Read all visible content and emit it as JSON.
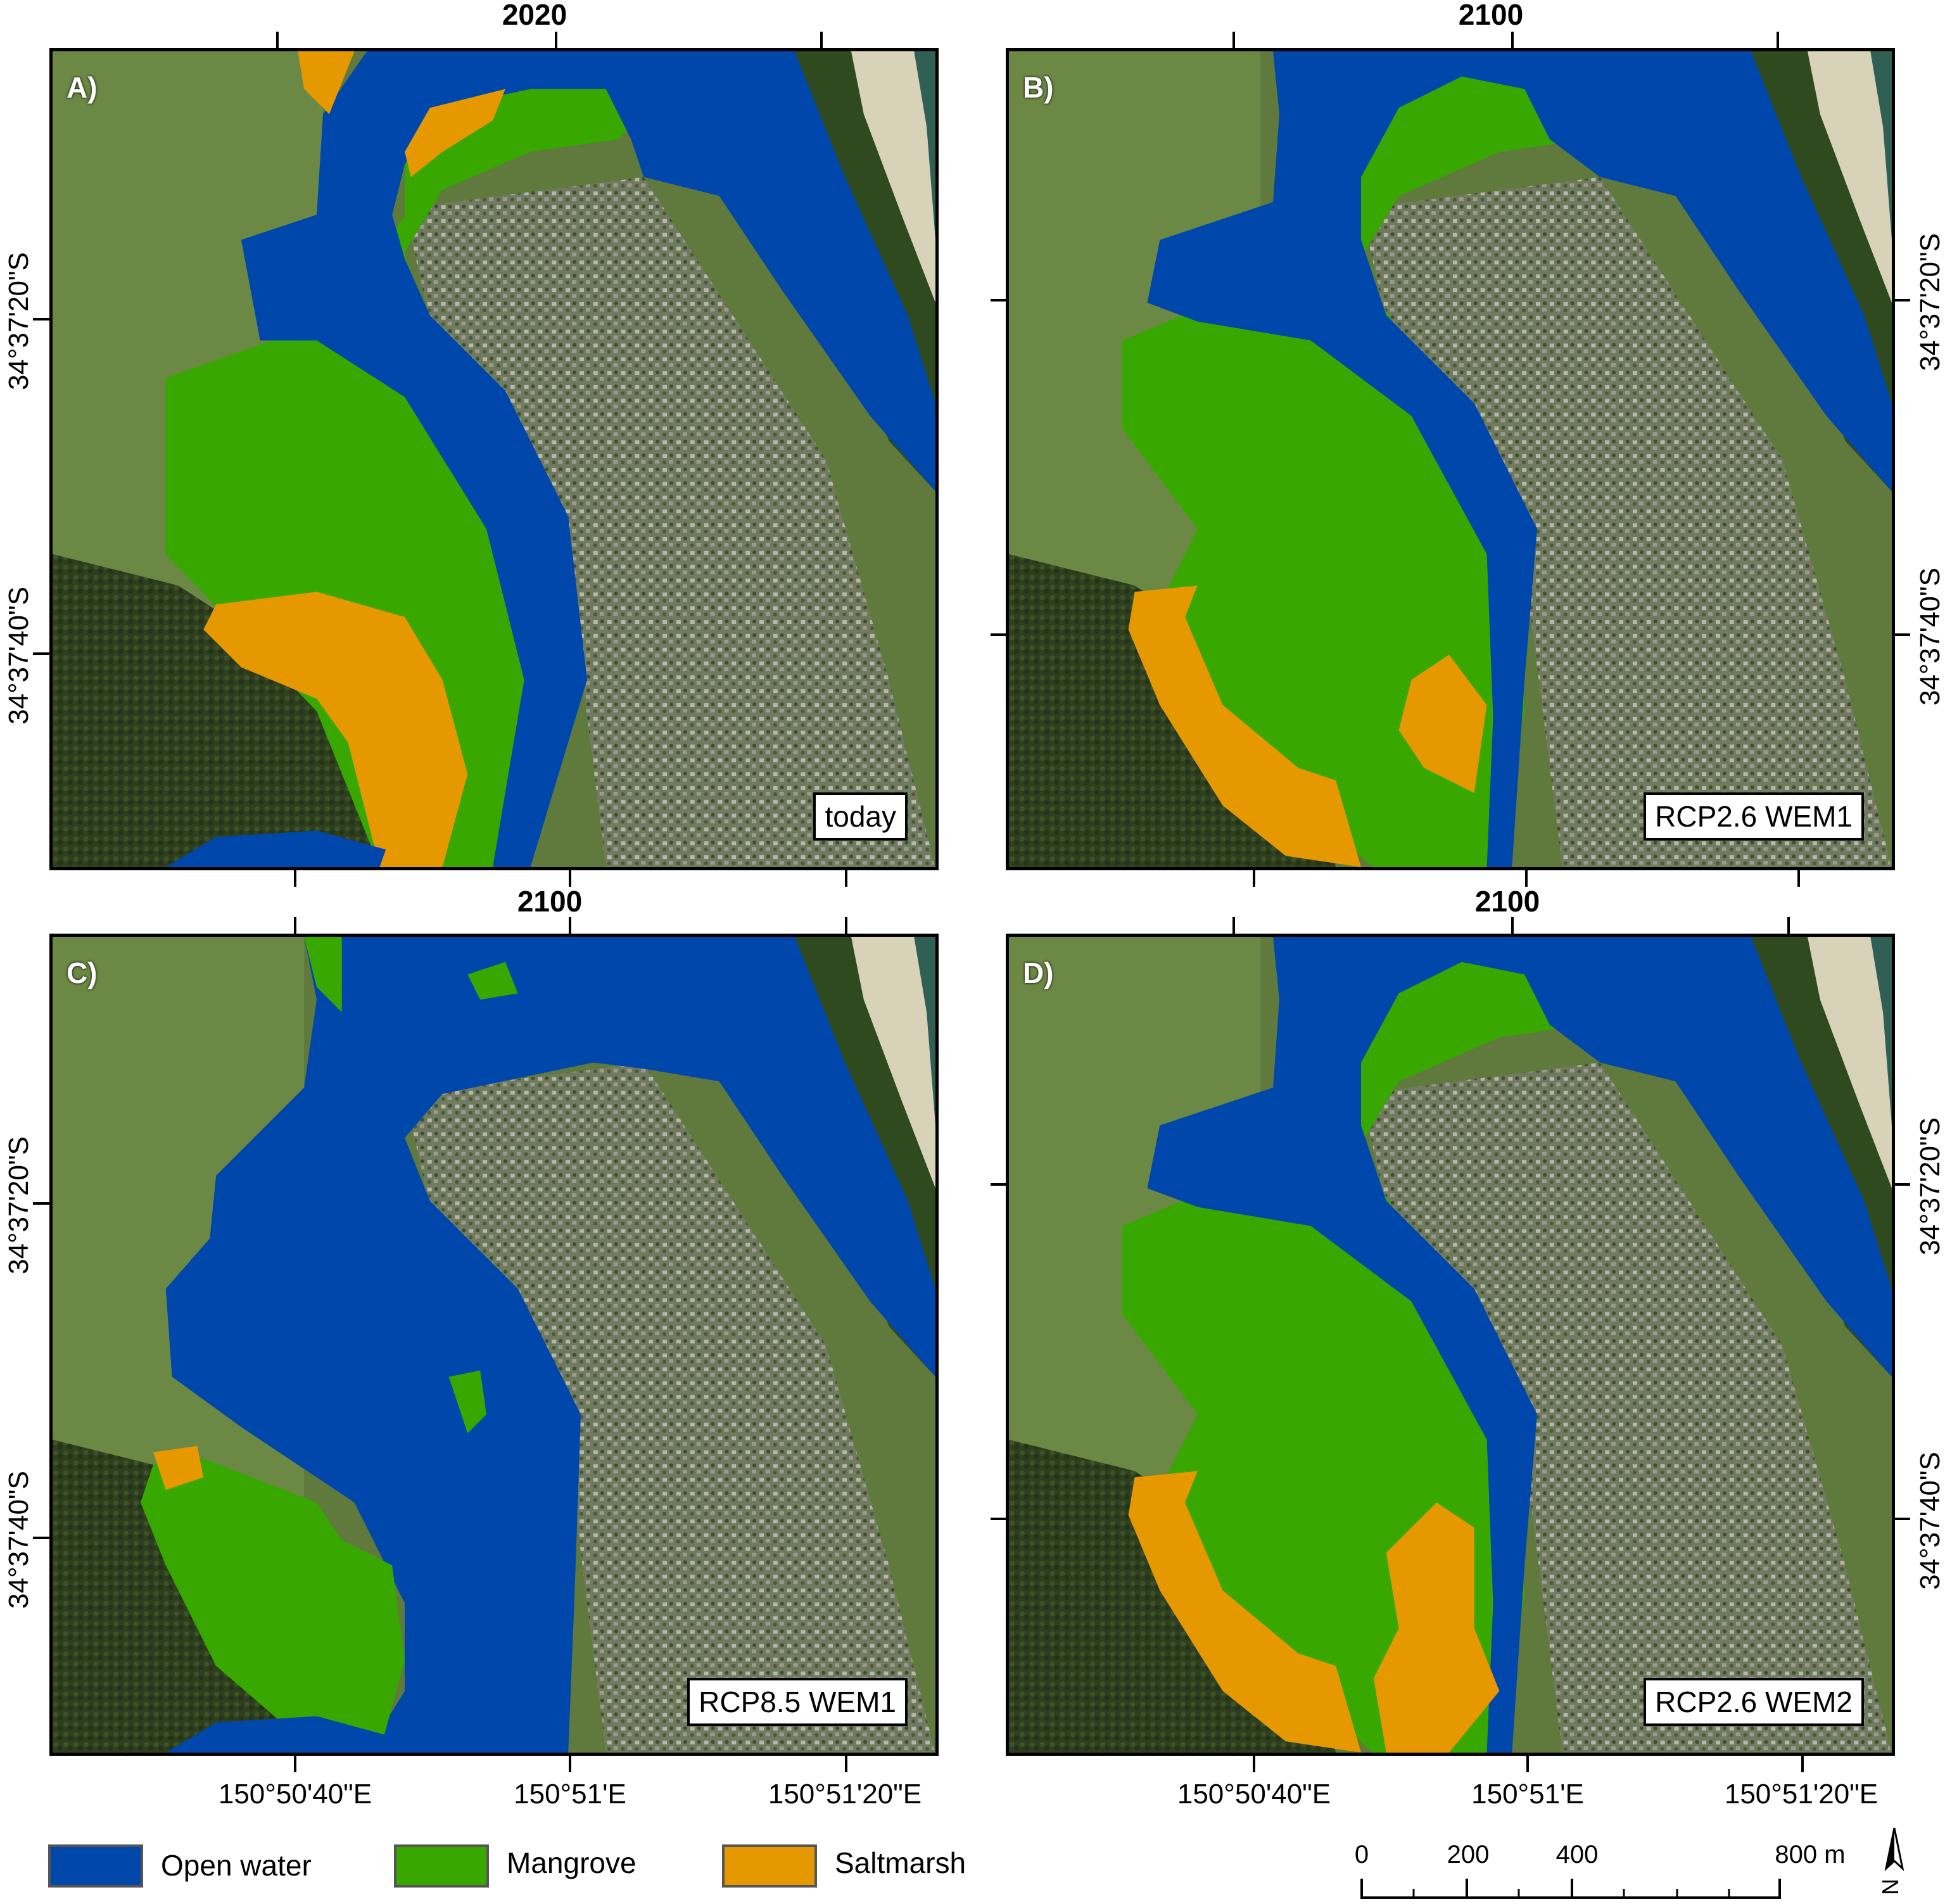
{
  "panels": [
    {
      "letter": "A)",
      "year": "2020",
      "scenario": "today"
    },
    {
      "letter": "B)",
      "year": "2100",
      "scenario": "RCP2.6 WEM1"
    },
    {
      "letter": "C)",
      "year": "2100",
      "scenario": "RCP8.5 WEM1"
    },
    {
      "letter": "D)",
      "year": "2100",
      "scenario": "RCP2.6 WEM2"
    }
  ],
  "lat_labels": [
    "34°37'20\"S",
    "34°37'40\"S"
  ],
  "lon_labels": [
    "150°50'40\"E",
    "150°51'E",
    "150°51'20\"E"
  ],
  "legend": [
    {
      "label": "Open water",
      "color": "#0047ab"
    },
    {
      "label": "Mangrove",
      "color": "#38a800"
    },
    {
      "label": "Saltmarsh",
      "color": "#e69800"
    }
  ],
  "scale_bar": {
    "ticks": [
      "0",
      "200",
      "400",
      "800 m"
    ]
  },
  "north_arrow": {
    "label": "N",
    "icon": "north-arrow-icon"
  },
  "colors": {
    "open_water": "#0047ab",
    "mangrove": "#38a800",
    "saltmarsh": "#e69800"
  }
}
